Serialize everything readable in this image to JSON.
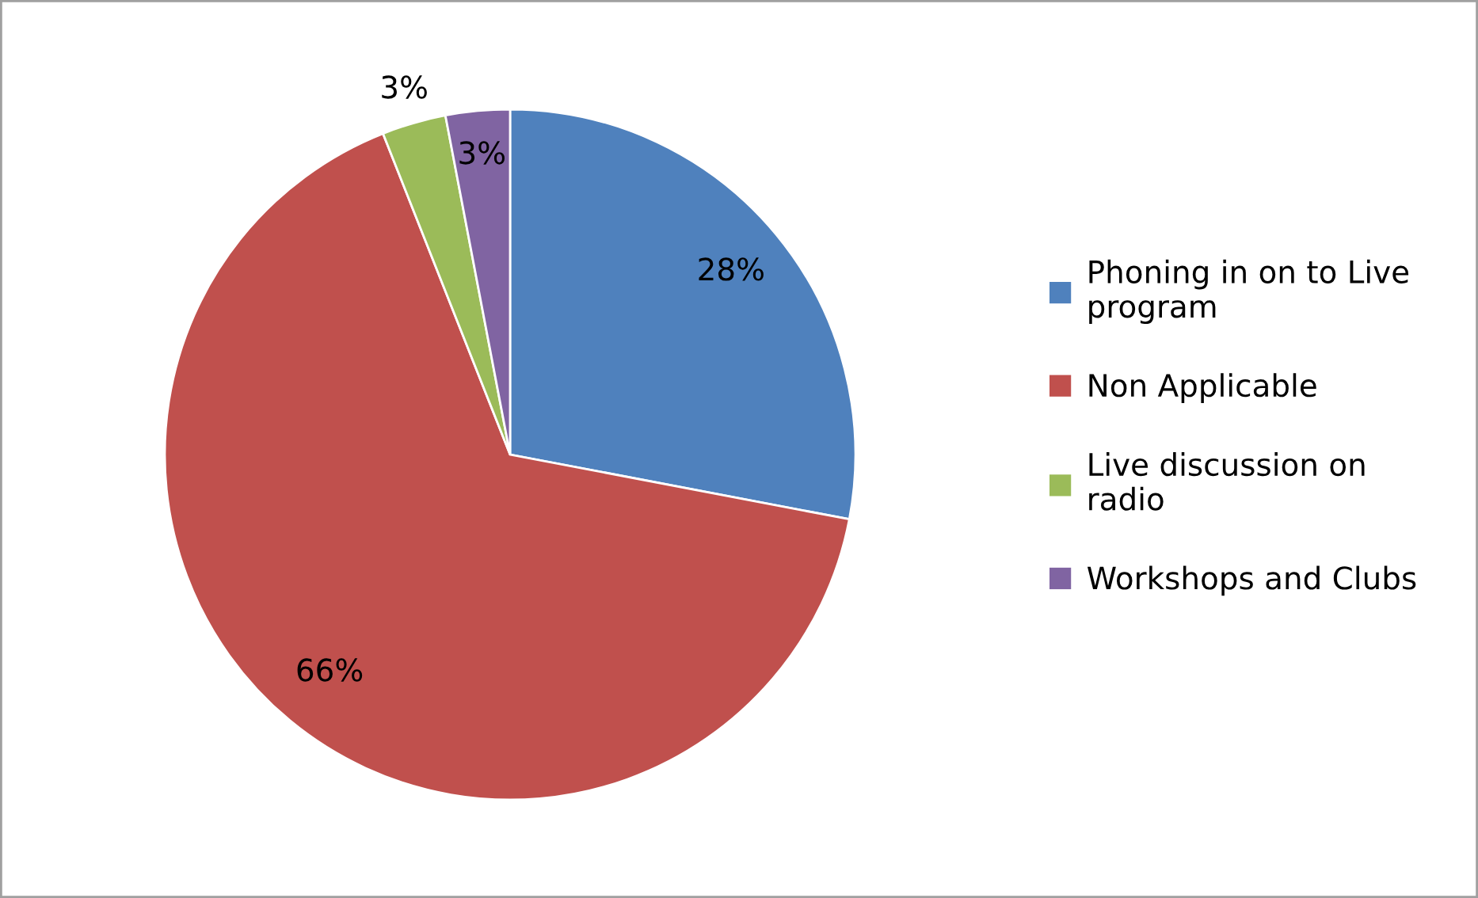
{
  "chart_data": {
    "type": "pie",
    "categories": [
      "Phoning in on to Live program",
      "Non Applicable",
      "Live discussion on radio",
      "Workshops and Clubs"
    ],
    "values": [
      28,
      66,
      3,
      3
    ],
    "colors": [
      "#4f81bd",
      "#c0504d",
      "#9bbb59",
      "#8064a2"
    ],
    "value_labels": [
      "28%",
      "66%",
      "3%",
      "3%"
    ],
    "legend": "right"
  }
}
